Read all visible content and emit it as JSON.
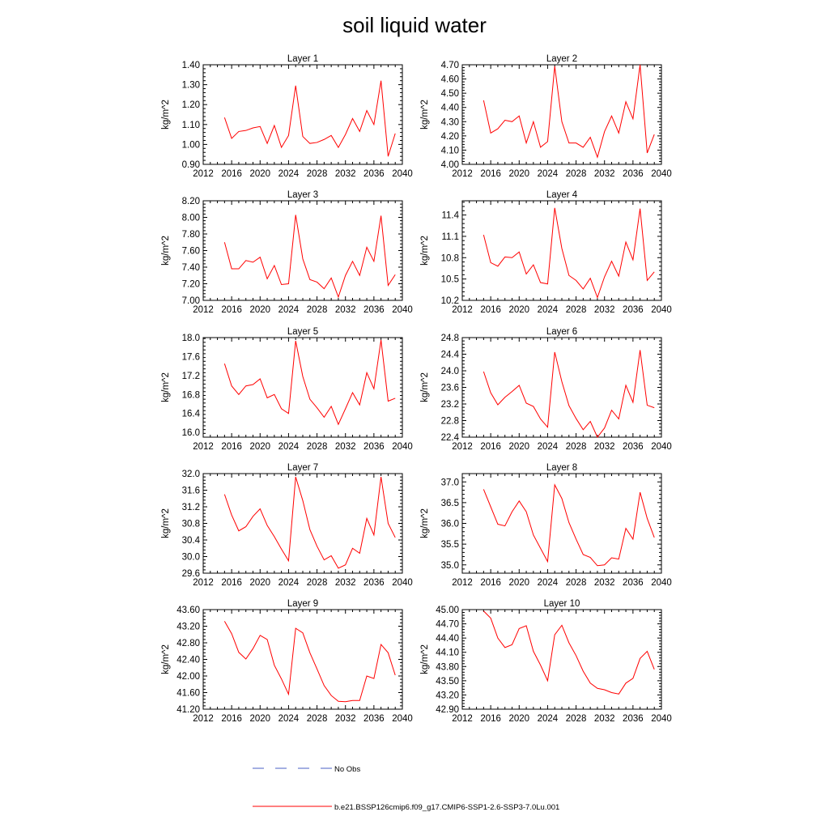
{
  "title": "soil liquid water",
  "colors": {
    "series": "#ff0000",
    "obs": "#4a5fc4",
    "axis": "#000000"
  },
  "legend": {
    "obs_label": "No Obs",
    "model_label": "b.e21.BSSP126cmip6.f09_g17.CMIP6-SSP1-2.6-SSP3-7.0Lu.001"
  },
  "chart_data": [
    {
      "type": "line",
      "title": "Layer 1",
      "ylabel": "kg/m^2",
      "xlim": [
        2012,
        2040
      ],
      "ylim": [
        0.9,
        1.4
      ],
      "xticks": [
        "2012",
        "2016",
        "2020",
        "2024",
        "2028",
        "2032",
        "2036",
        "2040"
      ],
      "yticks": [
        "0.90",
        "1.00",
        "1.10",
        "1.20",
        "1.30",
        "1.40"
      ],
      "x": [
        2015,
        2016,
        2017,
        2018,
        2019,
        2020,
        2021,
        2022,
        2023,
        2024,
        2025,
        2026,
        2027,
        2028,
        2029,
        2030,
        2031,
        2032,
        2033,
        2034,
        2035,
        2036,
        2037,
        2038,
        2039
      ],
      "series": [
        {
          "name": "b.e21.BSSP126cmip6.f09_g17.CMIP6-SSP1-2.6-SSP3-7.0Lu.001",
          "values": [
            1.135,
            1.03,
            1.065,
            1.07,
            1.083,
            1.09,
            1.005,
            1.095,
            0.985,
            1.045,
            1.295,
            1.04,
            1.005,
            1.01,
            1.025,
            1.045,
            0.985,
            1.05,
            1.13,
            1.065,
            1.17,
            1.1,
            1.32,
            0.94,
            1.055
          ]
        }
      ]
    },
    {
      "type": "line",
      "title": "Layer 2",
      "ylabel": "kg/m^2",
      "xlim": [
        2012,
        2040
      ],
      "ylim": [
        4.0,
        4.7
      ],
      "xticks": [
        "2012",
        "2016",
        "2020",
        "2024",
        "2028",
        "2032",
        "2036",
        "2040"
      ],
      "yticks": [
        "4.00",
        "4.10",
        "4.20",
        "4.30",
        "4.40",
        "4.50",
        "4.60",
        "4.70"
      ],
      "x": [
        2015,
        2016,
        2017,
        2018,
        2019,
        2020,
        2021,
        2022,
        2023,
        2024,
        2025,
        2026,
        2027,
        2028,
        2029,
        2030,
        2031,
        2032,
        2033,
        2034,
        2035,
        2036,
        2037,
        2038,
        2039
      ],
      "series": [
        {
          "name": "b.e21.BSSP126cmip6.f09_g17.CMIP6-SSP1-2.6-SSP3-7.0Lu.001",
          "values": [
            4.45,
            4.22,
            4.25,
            4.31,
            4.3,
            4.34,
            4.15,
            4.3,
            4.12,
            4.16,
            4.69,
            4.3,
            4.15,
            4.15,
            4.12,
            4.19,
            4.05,
            4.23,
            4.34,
            4.22,
            4.44,
            4.32,
            4.7,
            4.08,
            4.21
          ]
        }
      ]
    },
    {
      "type": "line",
      "title": "Layer 3",
      "ylabel": "kg/m^2",
      "xlim": [
        2012,
        2040
      ],
      "ylim": [
        7.0,
        8.2
      ],
      "xticks": [
        "2012",
        "2016",
        "2020",
        "2024",
        "2028",
        "2032",
        "2036",
        "2040"
      ],
      "yticks": [
        "7.00",
        "7.20",
        "7.40",
        "7.60",
        "7.80",
        "8.00",
        "8.20"
      ],
      "x": [
        2015,
        2016,
        2017,
        2018,
        2019,
        2020,
        2021,
        2022,
        2023,
        2024,
        2025,
        2026,
        2027,
        2028,
        2029,
        2030,
        2031,
        2032,
        2033,
        2034,
        2035,
        2036,
        2037,
        2038,
        2039
      ],
      "series": [
        {
          "name": "b.e21.BSSP126cmip6.f09_g17.CMIP6-SSP1-2.6-SSP3-7.0Lu.001",
          "values": [
            7.7,
            7.38,
            7.38,
            7.48,
            7.46,
            7.52,
            7.26,
            7.42,
            7.19,
            7.2,
            8.03,
            7.5,
            7.25,
            7.22,
            7.14,
            7.27,
            7.04,
            7.3,
            7.47,
            7.3,
            7.64,
            7.47,
            8.02,
            7.18,
            7.31
          ]
        }
      ]
    },
    {
      "type": "line",
      "title": "Layer 4",
      "ylabel": "kg/m^2",
      "xlim": [
        2012,
        2040
      ],
      "ylim": [
        10.2,
        11.6
      ],
      "xticks": [
        "2012",
        "2016",
        "2020",
        "2024",
        "2028",
        "2032",
        "2036",
        "2040"
      ],
      "yticks": [
        "10.2",
        "10.5",
        "10.8",
        "11.1",
        "11.4"
      ],
      "x": [
        2015,
        2016,
        2017,
        2018,
        2019,
        2020,
        2021,
        2022,
        2023,
        2024,
        2025,
        2026,
        2027,
        2028,
        2029,
        2030,
        2031,
        2032,
        2033,
        2034,
        2035,
        2036,
        2037,
        2038,
        2039
      ],
      "series": [
        {
          "name": "b.e21.BSSP126cmip6.f09_g17.CMIP6-SSP1-2.6-SSP3-7.0Lu.001",
          "values": [
            11.12,
            10.73,
            10.68,
            10.81,
            10.8,
            10.88,
            10.57,
            10.7,
            10.45,
            10.43,
            11.5,
            10.93,
            10.55,
            10.48,
            10.36,
            10.51,
            10.24,
            10.53,
            10.75,
            10.54,
            11.02,
            10.77,
            11.49,
            10.48,
            10.6
          ]
        }
      ]
    },
    {
      "type": "line",
      "title": "Layer 5",
      "ylabel": "kg/m^2",
      "xlim": [
        2012,
        2040
      ],
      "ylim": [
        15.9,
        18.0
      ],
      "xticks": [
        "2012",
        "2016",
        "2020",
        "2024",
        "2028",
        "2032",
        "2036",
        "2040"
      ],
      "yticks": [
        "16.0",
        "16.4",
        "16.8",
        "17.2",
        "17.6",
        "18.0"
      ],
      "x": [
        2015,
        2016,
        2017,
        2018,
        2019,
        2020,
        2021,
        2022,
        2023,
        2024,
        2025,
        2026,
        2027,
        2028,
        2029,
        2030,
        2031,
        2032,
        2033,
        2034,
        2035,
        2036,
        2037,
        2038,
        2039
      ],
      "series": [
        {
          "name": "b.e21.BSSP126cmip6.f09_g17.CMIP6-SSP1-2.6-SSP3-7.0Lu.001",
          "values": [
            17.45,
            16.98,
            16.8,
            16.98,
            17.01,
            17.13,
            16.73,
            16.8,
            16.5,
            16.4,
            17.93,
            17.18,
            16.7,
            16.52,
            16.32,
            16.55,
            16.17,
            16.5,
            16.84,
            16.58,
            17.26,
            16.92,
            17.95,
            16.66,
            16.72
          ]
        }
      ]
    },
    {
      "type": "line",
      "title": "Layer 6",
      "ylabel": "kg/m^2",
      "xlim": [
        2012,
        2040
      ],
      "ylim": [
        22.4,
        24.8
      ],
      "xticks": [
        "2012",
        "2016",
        "2020",
        "2024",
        "2028",
        "2032",
        "2036",
        "2040"
      ],
      "yticks": [
        "22.4",
        "22.8",
        "23.2",
        "23.6",
        "24.0",
        "24.4",
        "24.8"
      ],
      "x": [
        2015,
        2016,
        2017,
        2018,
        2019,
        2020,
        2021,
        2022,
        2023,
        2024,
        2025,
        2026,
        2027,
        2028,
        2029,
        2030,
        2031,
        2032,
        2033,
        2034,
        2035,
        2036,
        2037,
        2038,
        2039
      ],
      "series": [
        {
          "name": "b.e21.BSSP126cmip6.f09_g17.CMIP6-SSP1-2.6-SSP3-7.0Lu.001",
          "values": [
            23.98,
            23.47,
            23.18,
            23.36,
            23.5,
            23.65,
            23.22,
            23.14,
            22.84,
            22.64,
            24.45,
            23.74,
            23.16,
            22.85,
            22.58,
            22.78,
            22.4,
            22.62,
            23.05,
            22.84,
            23.65,
            23.24,
            24.5,
            23.17,
            23.11
          ]
        }
      ]
    },
    {
      "type": "line",
      "title": "Layer 7",
      "ylabel": "kg/m^2",
      "xlim": [
        2012,
        2040
      ],
      "ylim": [
        29.6,
        32.0
      ],
      "xticks": [
        "2012",
        "2016",
        "2020",
        "2024",
        "2028",
        "2032",
        "2036",
        "2040"
      ],
      "yticks": [
        "29.6",
        "30.0",
        "30.4",
        "30.8",
        "31.2",
        "31.6",
        "32.0"
      ],
      "x": [
        2015,
        2016,
        2017,
        2018,
        2019,
        2020,
        2021,
        2022,
        2023,
        2024,
        2025,
        2026,
        2027,
        2028,
        2029,
        2030,
        2031,
        2032,
        2033,
        2034,
        2035,
        2036,
        2037,
        2038,
        2039
      ],
      "series": [
        {
          "name": "b.e21.BSSP126cmip6.f09_g17.CMIP6-SSP1-2.6-SSP3-7.0Lu.001",
          "values": [
            31.5,
            31.0,
            30.62,
            30.72,
            30.97,
            31.15,
            30.75,
            30.48,
            30.18,
            29.9,
            31.92,
            31.35,
            30.65,
            30.25,
            29.92,
            30.02,
            29.72,
            29.8,
            30.2,
            30.08,
            30.92,
            30.52,
            31.92,
            30.8,
            30.46
          ]
        }
      ]
    },
    {
      "type": "line",
      "title": "Layer 8",
      "ylabel": "kg/m^2",
      "xlim": [
        2012,
        2040
      ],
      "ylim": [
        34.8,
        37.2
      ],
      "xticks": [
        "2012",
        "2016",
        "2020",
        "2024",
        "2028",
        "2032",
        "2036",
        "2040"
      ],
      "yticks": [
        "35.0",
        "35.5",
        "36.0",
        "36.5",
        "37.0"
      ],
      "x": [
        2015,
        2016,
        2017,
        2018,
        2019,
        2020,
        2021,
        2022,
        2023,
        2024,
        2025,
        2026,
        2027,
        2028,
        2029,
        2030,
        2031,
        2032,
        2033,
        2034,
        2035,
        2036,
        2037,
        2038,
        2039
      ],
      "series": [
        {
          "name": "b.e21.BSSP126cmip6.f09_g17.CMIP6-SSP1-2.6-SSP3-7.0Lu.001",
          "values": [
            36.82,
            36.4,
            35.98,
            35.94,
            36.28,
            36.54,
            36.28,
            35.72,
            35.4,
            35.08,
            36.93,
            36.6,
            36.02,
            35.62,
            35.25,
            35.18,
            34.98,
            35.0,
            35.17,
            35.14,
            35.88,
            35.62,
            36.75,
            36.12,
            35.66
          ]
        }
      ]
    },
    {
      "type": "line",
      "title": "Layer 9",
      "ylabel": "kg/m^2",
      "xlim": [
        2012,
        2040
      ],
      "ylim": [
        41.2,
        43.6
      ],
      "xticks": [
        "2012",
        "2016",
        "2020",
        "2024",
        "2028",
        "2032",
        "2036",
        "2040"
      ],
      "yticks": [
        "41.20",
        "41.60",
        "42.00",
        "42.40",
        "42.80",
        "43.20",
        "43.60"
      ],
      "x": [
        2015,
        2016,
        2017,
        2018,
        2019,
        2020,
        2021,
        2022,
        2023,
        2024,
        2025,
        2026,
        2027,
        2028,
        2029,
        2030,
        2031,
        2032,
        2033,
        2034,
        2035,
        2036,
        2037,
        2038,
        2039
      ],
      "series": [
        {
          "name": "b.e21.BSSP126cmip6.f09_g17.CMIP6-SSP1-2.6-SSP3-7.0Lu.001",
          "values": [
            43.32,
            43.02,
            42.57,
            42.41,
            42.66,
            42.98,
            42.88,
            42.26,
            41.93,
            41.56,
            43.15,
            43.04,
            42.56,
            42.17,
            41.77,
            41.53,
            41.39,
            41.38,
            41.41,
            41.41,
            42.0,
            41.94,
            42.76,
            42.56,
            42.02
          ]
        }
      ]
    },
    {
      "type": "line",
      "title": "Layer 10",
      "ylabel": "kg/m^2",
      "xlim": [
        2012,
        2040
      ],
      "ylim": [
        42.9,
        45.0
      ],
      "xticks": [
        "2012",
        "2016",
        "2020",
        "2024",
        "2028",
        "2032",
        "2036",
        "2040"
      ],
      "yticks": [
        "42.90",
        "43.20",
        "43.50",
        "43.80",
        "44.10",
        "44.40",
        "44.70",
        "45.00"
      ],
      "x": [
        2015,
        2016,
        2017,
        2018,
        2019,
        2020,
        2021,
        2022,
        2023,
        2024,
        2025,
        2026,
        2027,
        2028,
        2029,
        2030,
        2031,
        2032,
        2033,
        2034,
        2035,
        2036,
        2037,
        2038,
        2039
      ],
      "series": [
        {
          "name": "b.e21.BSSP126cmip6.f09_g17.CMIP6-SSP1-2.6-SSP3-7.0Lu.001",
          "values": [
            44.97,
            44.82,
            44.4,
            44.2,
            44.26,
            44.6,
            44.66,
            44.12,
            43.83,
            43.5,
            44.47,
            44.67,
            44.3,
            44.03,
            43.7,
            43.45,
            43.34,
            43.31,
            43.25,
            43.22,
            43.45,
            43.55,
            43.97,
            44.12,
            43.74
          ]
        }
      ]
    }
  ]
}
